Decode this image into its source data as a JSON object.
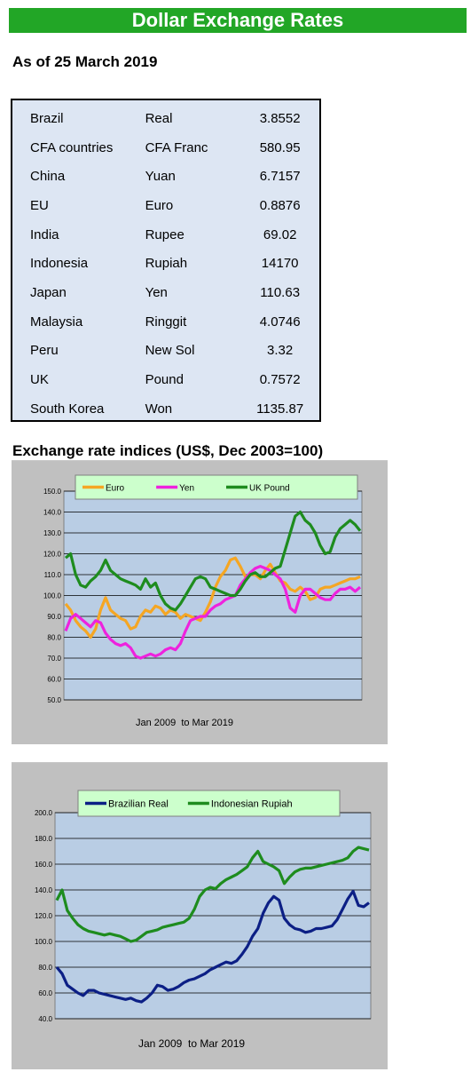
{
  "header": {
    "title": "Dollar Exchange Rates"
  },
  "as_of": "As of 25 March 2019",
  "rates": {
    "rows": [
      {
        "country": "Brazil",
        "currency": "Real",
        "value": "3.8552"
      },
      {
        "country": "CFA countries",
        "currency": "CFA Franc",
        "value": "580.95"
      },
      {
        "country": "China",
        "currency": "Yuan",
        "value": "6.7157"
      },
      {
        "country": "EU",
        "currency": "Euro",
        "value": "0.8876"
      },
      {
        "country": "India",
        "currency": "Rupee",
        "value": "69.02"
      },
      {
        "country": "Indonesia",
        "currency": "Rupiah",
        "value": "14170"
      },
      {
        "country": "Japan",
        "currency": "Yen",
        "value": "110.63"
      },
      {
        "country": "Malaysia",
        "currency": "Ringgit",
        "value": "4.0746"
      },
      {
        "country": "Peru",
        "currency": "New Sol",
        "value": "3.32"
      },
      {
        "country": "UK",
        "currency": "Pound",
        "value": "0.7572"
      },
      {
        "country": "South Korea",
        "currency": "Won",
        "value": "1135.87"
      }
    ]
  },
  "indices_title": "Exchange rate indices (US$, Dec 2003=100)",
  "chart_data": [
    {
      "type": "line",
      "title": "",
      "xlabel": "Jan 2009  to Mar 2019",
      "ylabel": "",
      "ylim": [
        50,
        150
      ],
      "yticks": [
        "150.0",
        "140.0",
        "130.0",
        "120.0",
        "110.0",
        "100.0",
        "90.0",
        "80.0",
        "70.0",
        "60.0",
        "50.0"
      ],
      "grid": true,
      "legend_position": "top",
      "series": [
        {
          "name": "Euro",
          "color": "#f5a623",
          "values": [
            96,
            93,
            88,
            85,
            83,
            80,
            84,
            93,
            99,
            93,
            91,
            89,
            88,
            84,
            85,
            90,
            93,
            92,
            95,
            94,
            91,
            93,
            92,
            89,
            91,
            90,
            89,
            88,
            92,
            97,
            104,
            109,
            112,
            117,
            118,
            114,
            109,
            110,
            110,
            108,
            112,
            115,
            111,
            107,
            106,
            103,
            102,
            104,
            102,
            98,
            99,
            103,
            104,
            104,
            105,
            106,
            107,
            108,
            108,
            109
          ]
        },
        {
          "name": "Yen",
          "color": "#ee22dd",
          "values": [
            83,
            89,
            91,
            89,
            87,
            85,
            88,
            87,
            82,
            79,
            77,
            76,
            77,
            75,
            71,
            70,
            71,
            72,
            71,
            72,
            74,
            75,
            74,
            77,
            83,
            88,
            89,
            90,
            90,
            93,
            95,
            96,
            98,
            99,
            100,
            105,
            108,
            111,
            113,
            114,
            113,
            112,
            110,
            108,
            103,
            94,
            92,
            100,
            103,
            103,
            101,
            99,
            98,
            98,
            101,
            103,
            103,
            104,
            102,
            104
          ]
        },
        {
          "name": "UK Pound",
          "color": "#1e8c1e",
          "values": [
            118,
            120,
            110,
            105,
            104,
            107,
            109,
            112,
            117,
            112,
            110,
            108,
            107,
            106,
            105,
            103,
            108,
            104,
            106,
            100,
            96,
            94,
            93,
            96,
            100,
            104,
            108,
            109,
            108,
            104,
            103,
            102,
            101,
            100,
            100,
            103,
            107,
            110,
            111,
            109,
            109,
            111,
            113,
            114,
            122,
            130,
            138,
            140,
            136,
            134,
            130,
            124,
            120,
            121,
            128,
            132,
            134,
            136,
            134,
            131
          ]
        }
      ]
    },
    {
      "type": "line",
      "title": "",
      "xlabel": "Jan 2009  to Mar 2019",
      "ylabel": "",
      "ylim": [
        40,
        200
      ],
      "yticks": [
        "200.0",
        "180.0",
        "160.0",
        "140.0",
        "120.0",
        "100.0",
        "80.0",
        "60.0",
        "40.0"
      ],
      "grid": true,
      "legend_position": "top",
      "series": [
        {
          "name": "Brazilian Real",
          "color": "#0c1f85",
          "values": [
            80,
            75,
            66,
            63,
            60,
            58,
            62,
            62,
            60,
            59,
            58,
            57,
            56,
            55,
            56,
            54,
            53,
            56,
            60,
            66,
            65,
            62,
            63,
            65,
            68,
            70,
            71,
            73,
            75,
            78,
            80,
            82,
            84,
            83,
            85,
            90,
            96,
            104,
            110,
            122,
            130,
            135,
            132,
            118,
            113,
            110,
            109,
            107,
            108,
            110,
            110,
            111,
            112,
            117,
            125,
            133,
            139,
            128,
            127,
            130
          ]
        },
        {
          "name": "Indonesian Rupiah",
          "color": "#1e8c1e",
          "values": [
            132,
            140,
            124,
            118,
            113,
            110,
            108,
            107,
            106,
            105,
            106,
            105,
            104,
            102,
            100,
            101,
            104,
            107,
            108,
            109,
            111,
            112,
            113,
            114,
            115,
            118,
            125,
            135,
            140,
            142,
            141,
            145,
            148,
            150,
            152,
            155,
            158,
            165,
            170,
            162,
            160,
            158,
            155,
            145,
            150,
            154,
            156,
            157,
            157,
            158,
            159,
            160,
            161,
            162,
            163,
            165,
            170,
            173,
            172,
            171
          ]
        }
      ]
    }
  ]
}
